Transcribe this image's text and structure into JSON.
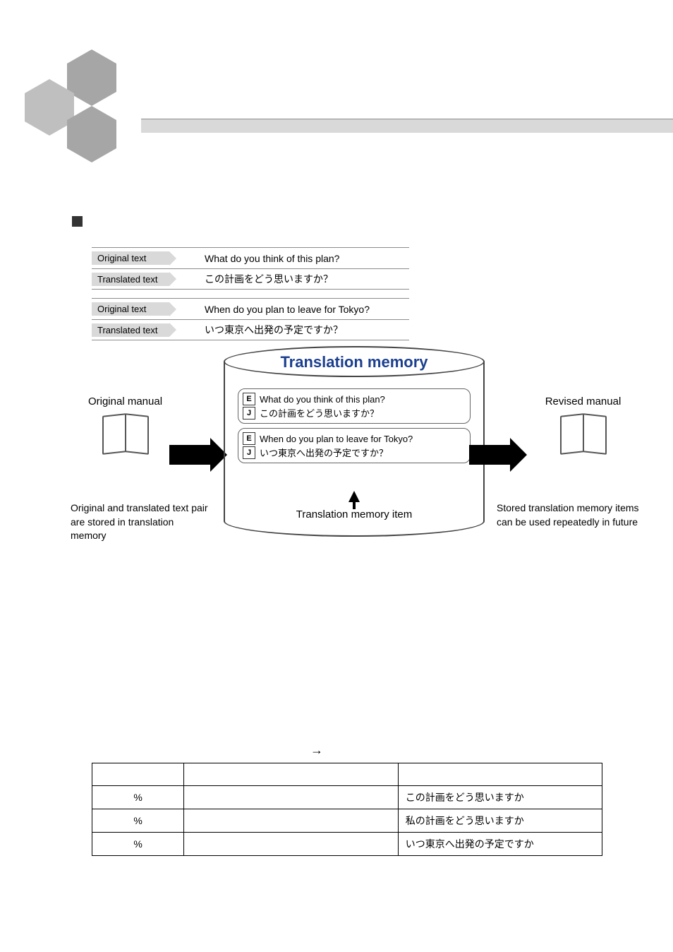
{
  "header": {
    "bar_color": "#d9d9d9",
    "bar_border": "#8c8c8c"
  },
  "hexagons": {
    "colors": [
      "#a6a6a6",
      "#bfbfbf",
      "#a6a6a6"
    ]
  },
  "examples": {
    "label_original": "Original text",
    "label_translated": "Translated text",
    "pairs": [
      {
        "original": "What do you think of this plan?",
        "translated": "この計画をどう思いますか？"
      },
      {
        "original": "When do you plan to leave for Tokyo?",
        "translated": "いつ東京へ出発の予定ですか？"
      }
    ],
    "label_bg": "#d9d9d9",
    "row_border": "#8c8c8c",
    "fontsize": 14
  },
  "diagram": {
    "cylinder_title": "Translation memory",
    "cylinder_title_color": "#1b3f8f",
    "cylinder_border": "#444444",
    "left_manual_title": "Original manual",
    "right_manual_title": "Revised manual",
    "left_caption": "Original and translated text pair are stored in translation memory",
    "right_caption": "Stored translation memory items can be used repeatedly in future",
    "tm_item_label": "Translation memory item",
    "lang_e": "E",
    "lang_j": "J",
    "mem": [
      {
        "e": "What do you think of this plan?",
        "j": "この計画をどう思いますか？"
      },
      {
        "e": "When do you plan to leave for Tokyo?",
        "j": "いつ東京へ出発の予定ですか？"
      }
    ],
    "arrow_color": "#000000",
    "book_border": "#555555"
  },
  "mid_arrow_glyph": "→",
  "table": {
    "border_color": "#000000",
    "fontsize": 14,
    "columns": [
      "",
      "",
      ""
    ],
    "rows": [
      {
        "pct": "%",
        "mid": "",
        "jp": "この計画をどう思いますか"
      },
      {
        "pct": "%",
        "mid": "",
        "jp": "私の計画をどう思いますか"
      },
      {
        "pct": "%",
        "mid": "",
        "jp": "いつ東京へ出発の予定ですか"
      }
    ]
  }
}
